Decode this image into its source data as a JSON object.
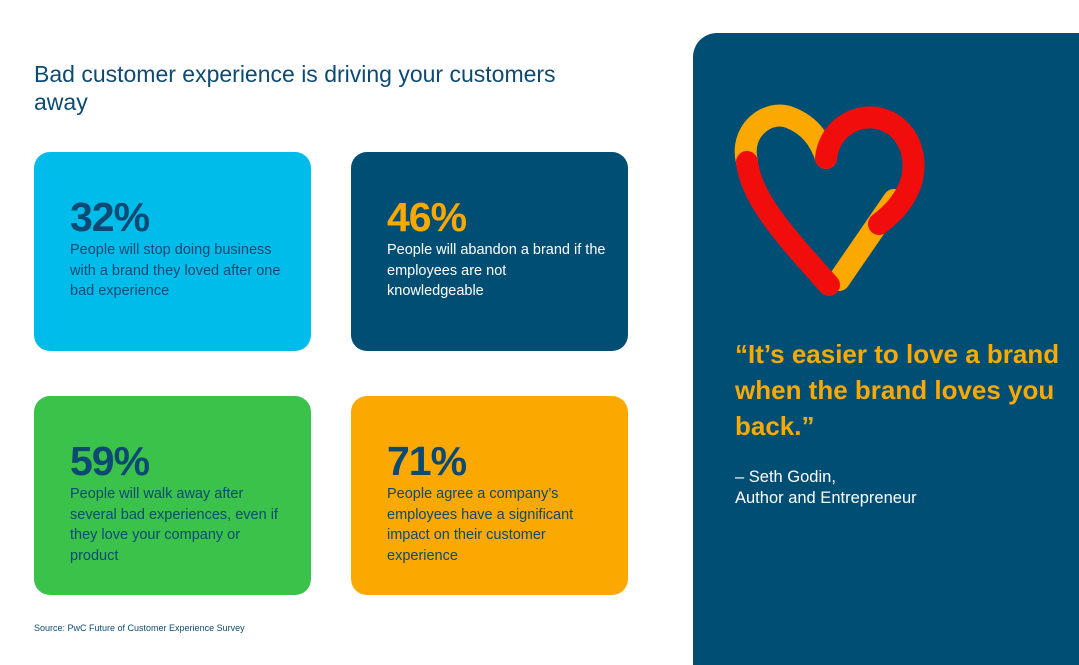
{
  "headline": "Bad customer experience is driving your customers away",
  "stats": [
    {
      "value": "32%",
      "text": "People will stop doing business with a brand they loved after one bad experience"
    },
    {
      "value": "46%",
      "text": "People will abandon a brand if the employees are not knowledgeable"
    },
    {
      "value": "59%",
      "text": "People will walk away after several bad experiences, even if they love your company or product"
    },
    {
      "value": "71%",
      "text": "People agree a company’s employees have a significant impact on their customer experience"
    }
  ],
  "source": "Source: PwC Future of Customer Experience Survey",
  "quote": {
    "text": "“It’s easier to love a brand when the brand loves you back.”",
    "author": "– Seth Godin,",
    "role": "Author and Entrepreneur"
  },
  "colors": {
    "navy": "#004e74",
    "cyan": "#00bceb",
    "green": "#3ac24a",
    "orange": "#fba800",
    "red": "#f20d0d",
    "text_dark": "#0d4a73"
  },
  "icons": [
    "heart-icon"
  ]
}
